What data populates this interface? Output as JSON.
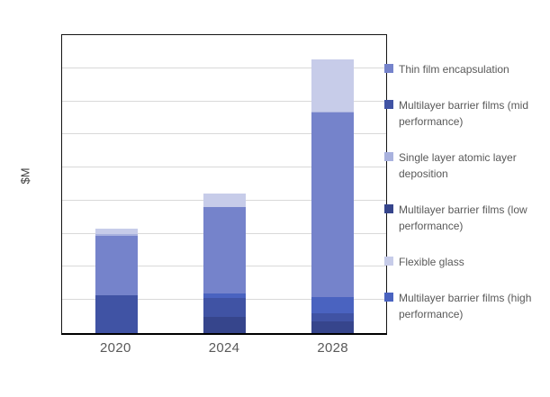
{
  "y_axis_label": "$M",
  "chart_data": {
    "type": "bar",
    "stacked": true,
    "title": "",
    "xlabel": "",
    "ylabel": "$M",
    "categories": [
      "2020",
      "2024",
      "2028"
    ],
    "series": [
      {
        "name": "Multilayer barrier films (low performance)",
        "color": "#36458c",
        "values": [
          0,
          50,
          35
        ]
      },
      {
        "name": "Multilayer barrier films (mid performance)",
        "color": "#4053a4",
        "values": [
          115,
          55,
          25
        ]
      },
      {
        "name": "Multilayer barrier films (high performance)",
        "color": "#4a63c0",
        "values": [
          0,
          15,
          50
        ]
      },
      {
        "name": "Thin film encapsulation",
        "color": "#7583cb",
        "values": [
          180,
          260,
          555
        ]
      },
      {
        "name": "Single layer atomic layer deposition",
        "color": "#a9b2de",
        "values": [
          3,
          2,
          3
        ]
      },
      {
        "name": "Flexible glass",
        "color": "#c7cce9",
        "values": [
          18,
          40,
          160
        ]
      }
    ],
    "ylim": [
      0,
      900
    ],
    "gridline_step": 100,
    "grid": true,
    "y_tick_labels_visible": false,
    "legend_position": "right",
    "legend_order": [
      "Thin film encapsulation",
      "Multilayer barrier films (mid performance)",
      "Single layer atomic layer deposition",
      "Multilayer barrier films (low performance)",
      "Flexible glass",
      "Multilayer barrier films (high performance)"
    ]
  }
}
